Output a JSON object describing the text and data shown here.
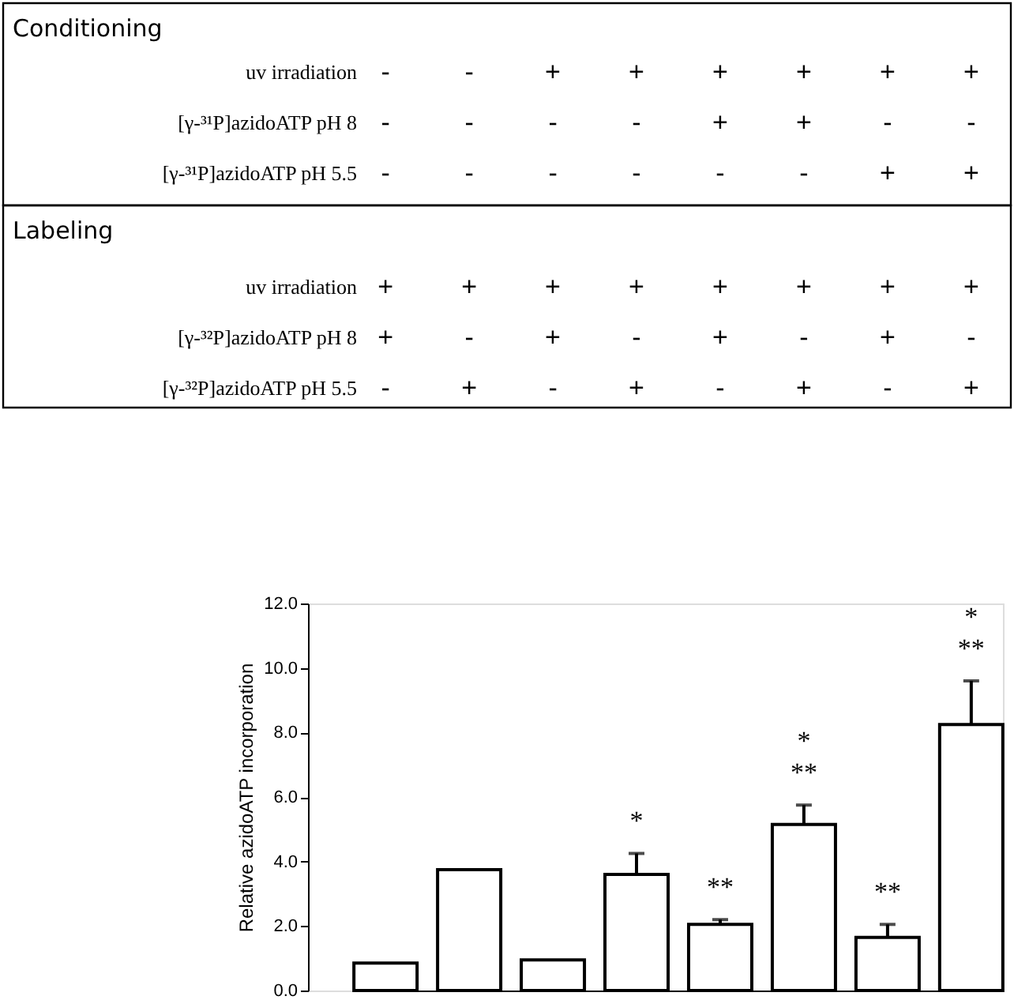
{
  "chart_data": {
    "type": "bar",
    "ylabel": "Relative azidoATP incorporation",
    "categories": [
      null,
      null,
      null,
      null,
      null,
      null,
      null,
      null
    ],
    "values": [
      0.85,
      3.75,
      0.95,
      3.6,
      2.05,
      5.15,
      1.65,
      8.25
    ],
    "errors": [
      null,
      null,
      null,
      [
        3.6,
        4.25
      ],
      [
        2.05,
        2.2
      ],
      [
        5.15,
        5.75
      ],
      [
        1.65,
        2.05
      ],
      [
        8.25,
        9.6
      ]
    ],
    "value_labels": [
      null,
      null,
      null,
      "*",
      "**",
      "*\n**",
      "**",
      "*\n**"
    ],
    "color": "#ffffff",
    "ylim": [
      0,
      12
    ],
    "yticks": [
      {
        "value": 0,
        "label": "0.0"
      },
      {
        "value": 2,
        "label": "2.0"
      },
      {
        "value": 4,
        "label": "4.0"
      },
      {
        "value": 6,
        "label": "6.0"
      },
      {
        "value": 8,
        "label": "8.0"
      },
      {
        "value": 10,
        "label": "10.0"
      },
      {
        "value": 12,
        "label": "12.0"
      }
    ],
    "tick_labels": "y",
    "grid": false,
    "annotations": [
      "Conditioning",
      "uv irradiation",
      "- - + + + + + +",
      "[γ-³¹P]azidoATP pH 8",
      "- - - - + + - -",
      "[γ-³¹P]azidoATP pH 5.5",
      "- - - - - - + +",
      "Labeling",
      "uv irradiation",
      "+ + + + + + + +",
      "[γ-³²P]azidoATP pH 8",
      "+ - + - + - + -",
      "[γ-³²P]azidoATP pH 5.5",
      "- + - + - + - +"
    ]
  }
}
